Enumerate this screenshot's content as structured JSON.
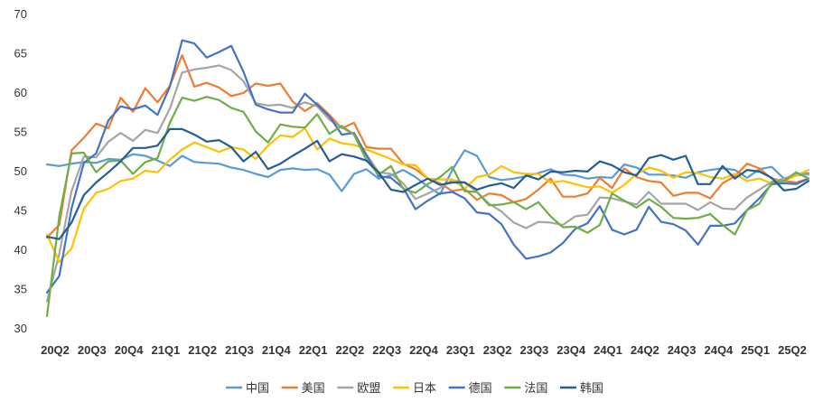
{
  "chart_data": {
    "type": "line",
    "title": "",
    "xlabel": "",
    "ylabel": "",
    "ylim": [
      30,
      70
    ],
    "yticks": [
      30,
      35,
      40,
      45,
      50,
      55,
      60,
      65,
      70
    ],
    "grid": "none",
    "legend_position": "bottom",
    "x_tick_labels": [
      "20Q2",
      "20Q3",
      "20Q4",
      "21Q1",
      "21Q2",
      "21Q3",
      "21Q4",
      "22Q1",
      "22Q2",
      "22Q3",
      "22Q4",
      "23Q1",
      "23Q2",
      "23Q3",
      "23Q4",
      "24Q1",
      "24Q2",
      "24Q3",
      "24Q4",
      "25Q1",
      "25Q2"
    ],
    "x": [
      "2020-04",
      "2020-05",
      "2020-06",
      "2020-07",
      "2020-08",
      "2020-09",
      "2020-10",
      "2020-11",
      "2020-12",
      "2021-01",
      "2021-02",
      "2021-03",
      "2021-04",
      "2021-05",
      "2021-06",
      "2021-07",
      "2021-08",
      "2021-09",
      "2021-10",
      "2021-11",
      "2021-12",
      "2022-01",
      "2022-02",
      "2022-03",
      "2022-04",
      "2022-05",
      "2022-06",
      "2022-07",
      "2022-08",
      "2022-09",
      "2022-10",
      "2022-11",
      "2022-12",
      "2023-01",
      "2023-02",
      "2023-03",
      "2023-04",
      "2023-05",
      "2023-06",
      "2023-07",
      "2023-08",
      "2023-09",
      "2023-10",
      "2023-11",
      "2023-12",
      "2024-01",
      "2024-02",
      "2024-03",
      "2024-04",
      "2024-05",
      "2024-06",
      "2024-07",
      "2024-08",
      "2024-09",
      "2024-10",
      "2024-11",
      "2024-12",
      "2025-01",
      "2025-02",
      "2025-03",
      "2025-04",
      "2025-05",
      "2025-06"
    ],
    "series": [
      {
        "name": "中国",
        "color": "#5b9bd5",
        "values": [
          50.8,
          50.6,
          50.9,
          51.1,
          51.0,
          51.5,
          51.4,
          52.1,
          51.9,
          51.3,
          50.6,
          51.9,
          51.1,
          51.0,
          50.9,
          50.4,
          50.1,
          49.6,
          49.2,
          50.1,
          50.3,
          50.1,
          50.2,
          49.5,
          47.4,
          49.6,
          50.2,
          49.0,
          49.4,
          50.1,
          49.2,
          48.0,
          47.0,
          50.1,
          52.6,
          51.9,
          49.2,
          48.8,
          49.0,
          49.3,
          49.7,
          50.2,
          49.5,
          49.4,
          49.0,
          49.2,
          49.1,
          50.8,
          50.4,
          49.5,
          49.5,
          49.4,
          49.1,
          49.8,
          50.1,
          50.3,
          50.1,
          49.1,
          50.2,
          50.5,
          49.0,
          49.5,
          49.7
        ]
      },
      {
        "name": "美国",
        "color": "#ed7d31",
        "values": [
          41.5,
          43.1,
          52.6,
          54.2,
          56.0,
          55.4,
          59.3,
          57.5,
          60.5,
          58.7,
          60.8,
          64.7,
          60.7,
          61.2,
          60.6,
          59.5,
          59.9,
          61.1,
          60.8,
          61.1,
          58.8,
          57.6,
          58.6,
          57.1,
          55.4,
          56.1,
          53.0,
          52.8,
          52.8,
          50.9,
          50.2,
          49.0,
          48.4,
          47.4,
          47.7,
          46.3,
          47.1,
          46.9,
          46.0,
          46.4,
          47.6,
          49.0,
          46.7,
          46.7,
          47.1,
          49.1,
          47.8,
          50.3,
          49.2,
          48.7,
          48.5,
          46.8,
          47.2,
          47.2,
          46.5,
          48.4,
          49.3,
          50.9,
          50.3,
          49.0,
          48.7,
          48.5,
          49.0
        ]
      },
      {
        "name": "欧盟",
        "color": "#a5a5a5",
        "values": [
          33.4,
          39.4,
          47.4,
          51.8,
          51.7,
          53.7,
          54.8,
          53.8,
          55.2,
          54.8,
          57.9,
          62.5,
          62.9,
          63.1,
          63.4,
          62.8,
          61.4,
          58.6,
          58.3,
          58.4,
          58.0,
          58.7,
          58.2,
          56.5,
          55.5,
          54.6,
          52.1,
          49.8,
          49.6,
          48.4,
          46.4,
          47.1,
          47.8,
          48.8,
          48.5,
          47.3,
          45.8,
          44.8,
          43.4,
          42.7,
          43.5,
          43.4,
          43.1,
          44.2,
          44.4,
          46.6,
          46.5,
          46.1,
          45.7,
          47.3,
          45.8,
          45.8,
          45.8,
          45.0,
          46.0,
          45.2,
          45.1,
          46.6,
          47.6,
          48.6,
          49.0,
          49.4,
          49.5
        ]
      },
      {
        "name": "日本",
        "color": "#ffc000",
        "values": [
          41.9,
          38.4,
          40.1,
          45.2,
          47.2,
          47.7,
          48.7,
          49.0,
          50.0,
          49.8,
          51.4,
          52.7,
          53.6,
          53.0,
          52.4,
          53.0,
          52.7,
          51.5,
          53.2,
          54.5,
          54.3,
          55.4,
          52.7,
          54.1,
          53.5,
          53.3,
          52.7,
          52.1,
          51.5,
          50.8,
          50.7,
          49.0,
          48.9,
          48.9,
          47.7,
          49.2,
          49.5,
          50.6,
          49.8,
          49.6,
          49.6,
          48.5,
          48.7,
          48.3,
          47.9,
          48.0,
          47.2,
          48.2,
          49.6,
          50.4,
          50.0,
          49.1,
          49.8,
          49.7,
          49.2,
          49.0,
          49.6,
          48.7,
          49.0,
          48.4,
          48.7,
          49.4,
          50.1
        ]
      },
      {
        "name": "德国",
        "color": "#4472c4",
        "values": [
          34.5,
          36.6,
          45.2,
          51.0,
          52.2,
          56.4,
          58.2,
          57.8,
          58.3,
          57.1,
          60.7,
          66.6,
          66.2,
          64.4,
          65.1,
          65.9,
          62.6,
          58.4,
          57.8,
          57.4,
          57.4,
          59.8,
          58.4,
          56.9,
          54.6,
          54.8,
          52.0,
          49.3,
          49.1,
          47.8,
          45.1,
          46.2,
          47.1,
          47.3,
          46.5,
          44.7,
          44.5,
          43.2,
          40.6,
          38.8,
          39.1,
          39.6,
          40.8,
          42.6,
          43.3,
          45.5,
          42.5,
          41.9,
          42.5,
          45.4,
          43.5,
          43.2,
          42.4,
          40.6,
          43.0,
          43.0,
          43.3,
          45.0,
          46.5,
          48.3,
          48.4,
          48.3,
          49.0
        ]
      },
      {
        "name": "法国",
        "color": "#70ad47",
        "values": [
          31.5,
          44.2,
          52.2,
          52.3,
          49.8,
          51.2,
          51.3,
          49.6,
          51.1,
          51.6,
          56.1,
          59.3,
          58.9,
          59.4,
          59.0,
          58.0,
          57.5,
          55.0,
          53.6,
          55.9,
          55.6,
          55.5,
          57.2,
          54.7,
          55.7,
          54.6,
          51.4,
          49.5,
          50.6,
          47.7,
          47.2,
          48.3,
          49.2,
          50.5,
          47.4,
          47.3,
          45.6,
          45.7,
          46.0,
          45.1,
          46.0,
          44.2,
          42.8,
          42.9,
          42.1,
          43.1,
          47.1,
          46.2,
          45.3,
          46.4,
          45.4,
          44.0,
          43.9,
          44.0,
          44.5,
          43.1,
          41.9,
          45.0,
          45.8,
          48.5,
          48.7,
          49.8,
          49.0
        ]
      },
      {
        "name": "韩国",
        "color": "#255e91",
        "values": [
          41.6,
          41.3,
          43.4,
          46.9,
          48.5,
          49.8,
          51.2,
          52.9,
          52.9,
          53.2,
          55.3,
          55.3,
          54.6,
          53.7,
          53.9,
          53.0,
          51.2,
          52.4,
          50.2,
          50.9,
          51.9,
          52.8,
          53.8,
          51.2,
          52.1,
          51.8,
          51.3,
          49.8,
          47.6,
          47.3,
          48.2,
          49.0,
          48.2,
          48.5,
          48.5,
          47.6,
          48.1,
          48.4,
          47.8,
          49.4,
          48.9,
          49.9,
          49.8,
          50.0,
          49.9,
          51.2,
          50.7,
          49.8,
          49.4,
          51.6,
          52.0,
          51.4,
          51.9,
          48.3,
          48.3,
          50.6,
          49.0,
          50.1,
          49.9,
          49.1,
          47.5,
          47.7,
          48.7
        ]
      }
    ]
  }
}
